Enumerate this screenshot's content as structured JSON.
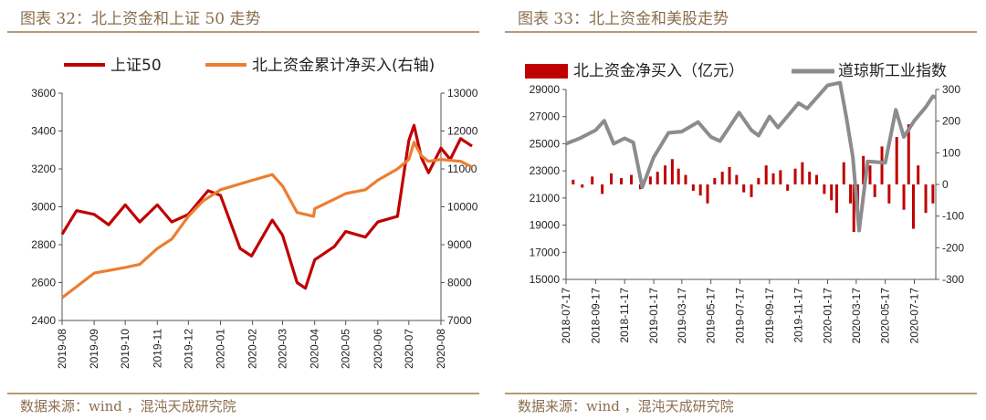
{
  "left_panel": {
    "title": "图表 32：北上资金和上证 50 走势",
    "source": "数据来源：wind ，混沌天成研究院"
  },
  "right_panel": {
    "title": "图表 33：北上资金和美股走势",
    "source": "数据来源：wind ，混沌天成研究院"
  },
  "chart_data": [
    {
      "type": "line",
      "title": "",
      "x": [
        "2019-08",
        "2019-09",
        "2019-10",
        "2019-11",
        "2019-12",
        "2020-01",
        "2020-02",
        "2020-03",
        "2020-04",
        "2020-05",
        "2020-06",
        "2020-07",
        "2020-08"
      ],
      "xlim": [
        "2019-08",
        "2020-08"
      ],
      "ylim_left": [
        2400,
        3600
      ],
      "yticks_left": [
        "3600",
        "3400",
        "3200",
        "3000",
        "2800",
        "2600",
        "2400"
      ],
      "ylim_right": [
        7000,
        13000
      ],
      "yticks_right": [
        "13000",
        "12000",
        "11000",
        "10000",
        "9000",
        "8000",
        "7000"
      ],
      "grid": false,
      "legend": "top",
      "series": [
        {
          "name": "上证50",
          "axis": "left",
          "color": "#c00000",
          "points": [
            [
              "2019-08",
              2855
            ],
            [
              "2019-08-15",
              2980
            ],
            [
              "2019-09",
              2960
            ],
            [
              "2019-09-15",
              2905
            ],
            [
              "2019-10",
              3010
            ],
            [
              "2019-10-15",
              2920
            ],
            [
              "2019-11",
              3010
            ],
            [
              "2019-11-15",
              2920
            ],
            [
              "2019-12",
              2960
            ],
            [
              "2019-12-20",
              3085
            ],
            [
              "2020-01",
              3060
            ],
            [
              "2020-01-20",
              2780
            ],
            [
              "2020-01-31",
              2740
            ],
            [
              "2020-02-20",
              2930
            ],
            [
              "2020-03",
              2850
            ],
            [
              "2020-03-15",
              2600
            ],
            [
              "2020-03-23",
              2570
            ],
            [
              "2020-04",
              2720
            ],
            [
              "2020-04-20",
              2790
            ],
            [
              "2020-05",
              2870
            ],
            [
              "2020-05-20",
              2840
            ],
            [
              "2020-06",
              2920
            ],
            [
              "2020-06-20",
              2950
            ],
            [
              "2020-07",
              3350
            ],
            [
              "2020-07-06",
              3430
            ],
            [
              "2020-07-13",
              3260
            ],
            [
              "2020-07-20",
              3180
            ],
            [
              "2020-08",
              3310
            ],
            [
              "2020-08-10",
              3250
            ],
            [
              "2020-08-20",
              3360
            ],
            [
              "2020-08-31",
              3320
            ]
          ]
        },
        {
          "name": "北上资金累计净买入(右轴)",
          "axis": "right",
          "color": "#ed7d31",
          "points": [
            [
              "2019-08",
              7600
            ],
            [
              "2019-09",
              8250
            ],
            [
              "2019-10",
              8400
            ],
            [
              "2019-10-15",
              8480
            ],
            [
              "2019-11",
              8900
            ],
            [
              "2019-11-15",
              9150
            ],
            [
              "2019-12",
              9750
            ],
            [
              "2019-12-15",
              10150
            ],
            [
              "2020-01",
              10450
            ],
            [
              "2020-02",
              10700
            ],
            [
              "2020-02-20",
              10850
            ],
            [
              "2020-03",
              10550
            ],
            [
              "2020-03-15",
              9850
            ],
            [
              "2020-03-31",
              9750
            ],
            [
              "2020-04",
              9950
            ],
            [
              "2020-04-20",
              10200
            ],
            [
              "2020-05",
              10350
            ],
            [
              "2020-05-20",
              10450
            ],
            [
              "2020-06",
              10700
            ],
            [
              "2020-06-20",
              11000
            ],
            [
              "2020-07",
              11250
            ],
            [
              "2020-07-06",
              11700
            ],
            [
              "2020-07-13",
              11350
            ],
            [
              "2020-07-20",
              11200
            ],
            [
              "2020-08",
              11250
            ],
            [
              "2020-08-20",
              11200
            ],
            [
              "2020-08-31",
              11050
            ]
          ]
        }
      ]
    },
    {
      "type": "bar+line",
      "title": "",
      "x": [
        "2018-07-17",
        "2018-09-17",
        "2018-11-17",
        "2019-01-17",
        "2019-03-17",
        "2019-05-17",
        "2019-07-17",
        "2019-09-17",
        "2019-11-17",
        "2020-01-17",
        "2020-03-17",
        "2020-05-17",
        "2020-07-17"
      ],
      "xlim": [
        "2018-07-17",
        "2020-08-31"
      ],
      "ylim_left": [
        15000,
        29000
      ],
      "yticks_left": [
        "29000",
        "27000",
        "25000",
        "23000",
        "21000",
        "19000",
        "17000",
        "15000"
      ],
      "ylim_right": [
        -300,
        300
      ],
      "yticks_right": [
        "300",
        "200",
        "100",
        "0",
        "-100",
        "-200",
        "-300"
      ],
      "grid": false,
      "legend": "top",
      "series": [
        {
          "name": "北上资金净买入（亿元）",
          "axis": "right",
          "kind": "bar",
          "color": "#c00000",
          "points": [
            [
              "2018-08-01",
              15
            ],
            [
              "2018-08-20",
              -10
            ],
            [
              "2018-09-10",
              25
            ],
            [
              "2018-10-01",
              -30
            ],
            [
              "2018-10-20",
              35
            ],
            [
              "2018-11-10",
              20
            ],
            [
              "2018-12-01",
              30
            ],
            [
              "2018-12-20",
              -15
            ],
            [
              "2019-01-10",
              25
            ],
            [
              "2019-01-25",
              40
            ],
            [
              "2019-02-10",
              60
            ],
            [
              "2019-02-25",
              80
            ],
            [
              "2019-03-10",
              50
            ],
            [
              "2019-03-25",
              30
            ],
            [
              "2019-04-10",
              -20
            ],
            [
              "2019-04-25",
              -35
            ],
            [
              "2019-05-10",
              -60
            ],
            [
              "2019-05-25",
              20
            ],
            [
              "2019-06-10",
              40
            ],
            [
              "2019-06-25",
              55
            ],
            [
              "2019-07-10",
              30
            ],
            [
              "2019-07-25",
              -25
            ],
            [
              "2019-08-10",
              -40
            ],
            [
              "2019-08-25",
              20
            ],
            [
              "2019-09-10",
              60
            ],
            [
              "2019-09-25",
              35
            ],
            [
              "2019-10-10",
              45
            ],
            [
              "2019-10-25",
              -20
            ],
            [
              "2019-11-10",
              50
            ],
            [
              "2019-11-25",
              70
            ],
            [
              "2019-12-10",
              40
            ],
            [
              "2019-12-25",
              30
            ],
            [
              "2020-01-10",
              -30
            ],
            [
              "2020-01-25",
              -50
            ],
            [
              "2020-02-05",
              -90
            ],
            [
              "2020-02-20",
              70
            ],
            [
              "2020-03-05",
              -60
            ],
            [
              "2020-03-12",
              -150
            ],
            [
              "2020-03-20",
              -110
            ],
            [
              "2020-04-01",
              90
            ],
            [
              "2020-04-15",
              60
            ],
            [
              "2020-04-25",
              -40
            ],
            [
              "2020-05-10",
              120
            ],
            [
              "2020-05-25",
              -60
            ],
            [
              "2020-06-10",
              150
            ],
            [
              "2020-06-25",
              -80
            ],
            [
              "2020-07-05",
              190
            ],
            [
              "2020-07-15",
              -140
            ],
            [
              "2020-07-25",
              60
            ],
            [
              "2020-08-10",
              -90
            ],
            [
              "2020-08-25",
              -60
            ]
          ]
        },
        {
          "name": "道琼斯工业指数",
          "axis": "left",
          "kind": "line",
          "color": "#8c8c8c",
          "points": [
            [
              "2018-07-17",
              25000
            ],
            [
              "2018-08-15",
              25400
            ],
            [
              "2018-09-17",
              26000
            ],
            [
              "2018-10-05",
              26700
            ],
            [
              "2018-10-25",
              25000
            ],
            [
              "2018-11-17",
              25400
            ],
            [
              "2018-12-05",
              25100
            ],
            [
              "2018-12-24",
              21800
            ],
            [
              "2019-01-17",
              24000
            ],
            [
              "2019-02-17",
              25800
            ],
            [
              "2019-03-17",
              25900
            ],
            [
              "2019-04-20",
              26600
            ],
            [
              "2019-05-17",
              25500
            ],
            [
              "2019-06-05",
              25200
            ],
            [
              "2019-07-15",
              27300
            ],
            [
              "2019-08-10",
              26000
            ],
            [
              "2019-08-25",
              25600
            ],
            [
              "2019-09-17",
              27000
            ],
            [
              "2019-10-05",
              26200
            ],
            [
              "2019-11-17",
              28000
            ],
            [
              "2019-12-05",
              27600
            ],
            [
              "2020-01-17",
              29300
            ],
            [
              "2020-02-12",
              29500
            ],
            [
              "2020-02-25",
              27000
            ],
            [
              "2020-03-10",
              24000
            ],
            [
              "2020-03-23",
              18600
            ],
            [
              "2020-04-10",
              23700
            ],
            [
              "2020-05-17",
              23600
            ],
            [
              "2020-06-08",
              27500
            ],
            [
              "2020-06-25",
              25500
            ],
            [
              "2020-07-17",
              26700
            ],
            [
              "2020-08-10",
              27700
            ],
            [
              "2020-08-25",
              28500
            ],
            [
              "2020-08-31",
              28400
            ]
          ]
        }
      ]
    }
  ]
}
